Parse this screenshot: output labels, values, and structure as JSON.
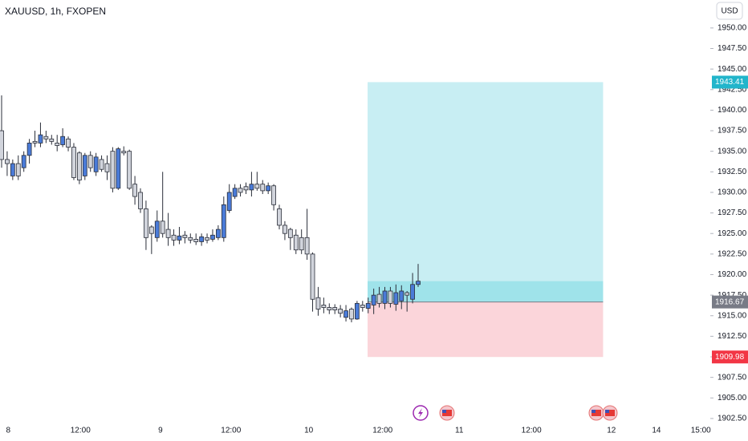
{
  "chart_data": {
    "type": "candlestick",
    "title": "XAUUSD, 1h, FXOPEN",
    "currency": "USD",
    "up_color": "#4a7bd8",
    "down_color": "#d1d4dc",
    "border_color": "#2a2e39",
    "open": [
      1937.5,
      1934,
      1932,
      1933.5,
      1933,
      1934.5,
      1936.2,
      1936,
      1936.8,
      1936.5,
      1936,
      1935.8,
      1936.5,
      1935.5,
      1934.8,
      1932,
      1934.5,
      1932.5,
      1934,
      1933.5,
      1935,
      1930.5,
      1935,
      1935,
      1931,
      1930,
      1928,
      1925.8,
      1924.5,
      1926.5,
      1925.5,
      1924.8,
      1924.2,
      1924.8,
      1924.5,
      1924.3,
      1924,
      1924.5,
      1924.3,
      1924.5,
      1924.5,
      1927.8,
      1929.5,
      1930.5,
      1930.7,
      1930.3,
      1931,
      1931,
      1930.2,
      1930.8,
      1928,
      1926,
      1925.5,
      1924.8,
      1924.5,
      1924.5,
      1922.5,
      1917.2,
      1916.3,
      1916,
      1916,
      1915.8,
      1914.8,
      1915.8,
      1914.6,
      1916.3,
      1915.9,
      1916.3,
      1917.6,
      1916.5,
      1918,
      1916.4,
      1916.8,
      1917.8,
      1917,
      1918.8
    ],
    "high": [
      1941.8,
      1935,
      1934,
      1934.5,
      1935,
      1936.5,
      1937.5,
      1938.5,
      1937.5,
      1937,
      1937,
      1937.8,
      1936.8,
      1936,
      1935,
      1934.8,
      1935,
      1934.8,
      1934.5,
      1934.5,
      1935.5,
      1935.5,
      1935.6,
      1935.2,
      1932,
      1930.5,
      1929,
      1926,
      1927.8,
      1932.5,
      1927.5,
      1925.5,
      1925.8,
      1925.3,
      1925,
      1925,
      1925,
      1925,
      1925.5,
      1926,
      1929.5,
      1931,
      1931,
      1931,
      1931.2,
      1932.5,
      1932.5,
      1931.5,
      1931.2,
      1931,
      1928.5,
      1926.5,
      1925.7,
      1925.5,
      1925.5,
      1928,
      1922.7,
      1918.5,
      1917.2,
      1916.5,
      1916.4,
      1916.3,
      1916.3,
      1916,
      1916.8,
      1916.8,
      1917.2,
      1918.3,
      1918.5,
      1918.5,
      1918.5,
      1918.8,
      1918.7,
      1918,
      1920.2,
      1921.3
    ],
    "low": [
      1933,
      1932,
      1931.5,
      1931.5,
      1932.5,
      1933.5,
      1935.5,
      1935.5,
      1936,
      1935.8,
      1935,
      1935.5,
      1935,
      1931.5,
      1931,
      1931.5,
      1932.5,
      1932,
      1932.5,
      1931.5,
      1930,
      1930.3,
      1934.5,
      1930.3,
      1928.5,
      1927.5,
      1923,
      1922.5,
      1924,
      1924.5,
      1923.5,
      1923.5,
      1923.7,
      1923.8,
      1923.8,
      1923.6,
      1923.5,
      1923.8,
      1924,
      1924.2,
      1924,
      1927.5,
      1929.2,
      1929.5,
      1929.8,
      1929.5,
      1930.2,
      1929.8,
      1929.8,
      1927.8,
      1925.5,
      1924.2,
      1923,
      1922.5,
      1922.5,
      1921.8,
      1915.5,
      1915,
      1915.3,
      1915.2,
      1915.2,
      1914.8,
      1914.3,
      1914.2,
      1914.5,
      1915.5,
      1915.3,
      1915.2,
      1916,
      1915.8,
      1916,
      1915.6,
      1915.8,
      1915.5,
      1916.5,
      1918.5
    ],
    "close": [
      1934,
      1933.5,
      1933.5,
      1932,
      1934.5,
      1936,
      1936,
      1937,
      1936.5,
      1936.2,
      1935.7,
      1936.8,
      1935.5,
      1931.8,
      1931.5,
      1934.5,
      1933,
      1934.3,
      1932.8,
      1932.5,
      1930.5,
      1935.3,
      1934.8,
      1930.5,
      1929.5,
      1928,
      1924.5,
      1925,
      1926.5,
      1925,
      1924.5,
      1924.2,
      1924.7,
      1924.5,
      1924.2,
      1924,
      1924.6,
      1924.2,
      1924.8,
      1925.5,
      1928.5,
      1930,
      1930.5,
      1930,
      1930.3,
      1931,
      1930.5,
      1930.2,
      1930.8,
      1928.5,
      1926,
      1925,
      1924.5,
      1923,
      1923,
      1922.5,
      1917,
      1915.8,
      1916,
      1915.7,
      1915.7,
      1915.3,
      1915.6,
      1914.6,
      1916.5,
      1916,
      1916.5,
      1917.5,
      1916.5,
      1918,
      1916.5,
      1917.8,
      1918,
      1917.5,
      1918.8,
      1919.2
    ],
    "position": {
      "entry": 1916.67,
      "target": 1943.41,
      "stop": 1909.98,
      "start": 65.9,
      "end": 108.3,
      "target_color": "#c8eef3",
      "filled_color": "#9fe3ea",
      "stop_color": "#fbd5da",
      "target_label_color": "#22b5cb",
      "entry_label_color": "#787b86",
      "stop_label_color": "#f23645"
    },
    "xlim": [
      -0.29,
      127.6
    ],
    "ylim": [
      1902.2,
      1953.4
    ],
    "xticks": [
      {
        "value": 1.2,
        "label": "8"
      },
      {
        "value": 14.2,
        "label": "12:00"
      },
      {
        "value": 28.6,
        "label": "9"
      },
      {
        "value": 41.3,
        "label": "12:00"
      },
      {
        "value": 55.3,
        "label": "10"
      },
      {
        "value": 68.6,
        "label": "12:00"
      },
      {
        "value": 82.4,
        "label": "11"
      },
      {
        "value": 95.4,
        "label": "12:00"
      },
      {
        "value": 109.8,
        "label": "12"
      },
      {
        "value": 117.9,
        "label": "14"
      },
      {
        "value": 125.9,
        "label": "15:00"
      }
    ],
    "yticks": [
      {
        "value": 1902.5,
        "label": "1902.50"
      },
      {
        "value": 1905,
        "label": "1905.00"
      },
      {
        "value": 1907.5,
        "label": "1907.50"
      },
      {
        "value": 1910,
        "label": "1910.00"
      },
      {
        "value": 1912.5,
        "label": "1912.50"
      },
      {
        "value": 1915,
        "label": "1915.00"
      },
      {
        "value": 1917.5,
        "label": "1917.50"
      },
      {
        "value": 1920,
        "label": "1920.00"
      },
      {
        "value": 1922.5,
        "label": "1922.50"
      },
      {
        "value": 1925,
        "label": "1925.00"
      },
      {
        "value": 1927.5,
        "label": "1927.50"
      },
      {
        "value": 1930,
        "label": "1930.00"
      },
      {
        "value": 1932.5,
        "label": "1932.50"
      },
      {
        "value": 1935,
        "label": "1935.00"
      },
      {
        "value": 1937.5,
        "label": "1937.50"
      },
      {
        "value": 1940,
        "label": "1940.00"
      },
      {
        "value": 1942.5,
        "label": "1942.50"
      },
      {
        "value": 1945,
        "label": "1945.00"
      },
      {
        "value": 1947.5,
        "label": "1947.50"
      },
      {
        "value": 1950,
        "label": "1950.00"
      }
    ]
  }
}
